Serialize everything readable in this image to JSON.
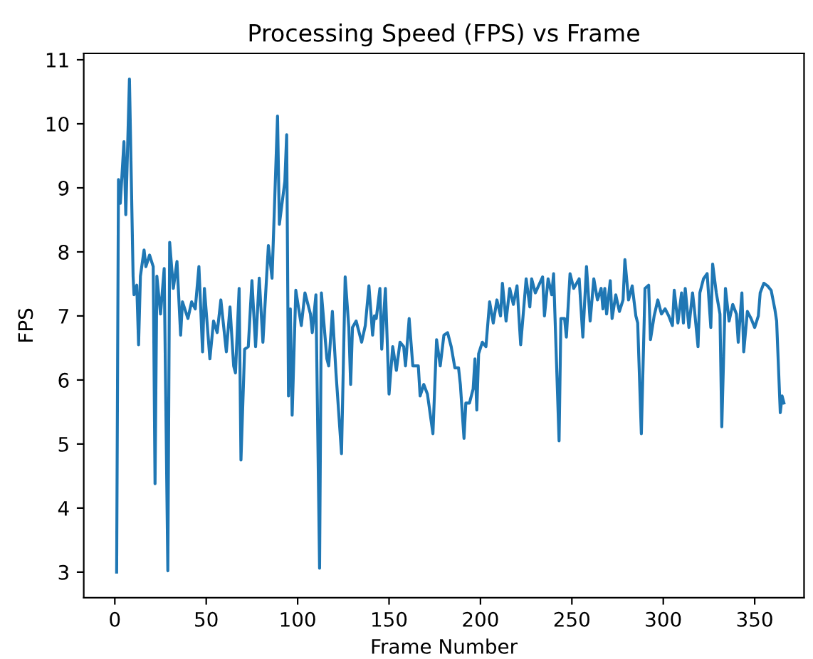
{
  "chart_data": {
    "type": "line",
    "title": "Processing Speed (FPS) vs Frame",
    "xlabel": "Frame Number",
    "ylabel": "FPS",
    "xlim": [
      -17,
      377
    ],
    "ylim": [
      2.6,
      11.1
    ],
    "xticks": [
      0,
      50,
      100,
      150,
      200,
      250,
      300,
      350
    ],
    "yticks": [
      3,
      4,
      5,
      6,
      7,
      8,
      9,
      10,
      11
    ],
    "grid": false,
    "legend": false,
    "series": [
      {
        "color": "#1f77b4",
        "x": [
          1,
          2,
          3,
          5,
          6,
          8,
          10,
          10.5,
          12,
          13,
          14,
          16,
          17,
          19,
          21,
          22,
          23,
          25,
          27,
          29,
          30,
          32,
          34,
          36,
          37,
          40,
          42,
          44,
          46,
          48,
          49,
          52,
          54,
          56,
          58,
          61,
          63,
          65,
          66,
          68,
          69,
          71,
          73,
          75,
          77,
          79,
          81,
          84,
          86,
          89,
          90,
          93,
          94,
          95,
          96,
          97,
          99,
          102,
          104,
          107,
          108,
          110,
          112,
          113,
          116,
          117,
          119,
          121,
          124,
          126,
          128,
          129,
          130,
          132,
          135,
          137,
          139,
          141,
          142,
          143,
          145,
          146,
          148,
          150,
          152,
          154,
          156,
          158,
          159,
          161,
          163,
          166,
          167,
          169,
          171,
          174,
          176,
          178,
          180,
          182,
          184,
          186,
          188,
          189,
          191,
          192,
          194,
          196,
          197,
          198,
          199,
          201,
          203,
          205,
          207,
          209,
          211,
          212,
          214,
          216,
          218,
          220,
          222,
          225,
          227,
          228,
          230,
          234,
          235,
          237,
          239,
          240,
          243,
          244,
          246,
          247,
          249,
          251,
          254,
          256,
          258,
          260,
          262,
          264,
          266,
          267,
          268,
          269,
          271,
          272,
          274,
          276,
          278,
          279,
          281,
          283,
          285,
          286,
          288,
          290,
          292,
          293,
          295,
          297,
          299,
          301,
          303,
          305,
          306,
          308,
          310,
          311,
          312,
          314,
          316,
          317,
          319,
          320,
          322,
          324,
          326,
          327,
          329,
          331,
          332,
          334,
          336,
          338,
          340,
          341,
          343,
          344,
          346,
          348,
          350,
          352,
          353,
          355,
          357,
          359,
          361,
          362,
          364,
          365,
          366
        ],
        "values": [
          3.0,
          9.13,
          8.76,
          9.72,
          8.58,
          10.7,
          7.62,
          7.33,
          7.48,
          6.55,
          7.62,
          8.03,
          7.77,
          7.95,
          7.77,
          4.38,
          7.62,
          7.03,
          7.74,
          3.02,
          8.15,
          7.43,
          7.85,
          6.7,
          7.22,
          6.96,
          7.22,
          7.11,
          7.77,
          6.44,
          7.43,
          6.33,
          6.92,
          6.74,
          7.25,
          6.44,
          7.14,
          6.22,
          6.11,
          7.43,
          4.75,
          6.48,
          6.52,
          7.55,
          6.52,
          7.59,
          6.59,
          8.1,
          7.59,
          10.12,
          8.43,
          9.1,
          9.83,
          5.75,
          7.11,
          5.45,
          7.4,
          6.85,
          7.36,
          7.03,
          6.74,
          7.33,
          3.06,
          7.36,
          6.33,
          6.22,
          7.07,
          6.1,
          4.85,
          7.61,
          6.82,
          5.93,
          6.82,
          6.92,
          6.59,
          6.85,
          7.47,
          6.7,
          7.0,
          6.96,
          7.43,
          6.48,
          7.43,
          5.78,
          6.52,
          6.15,
          6.59,
          6.52,
          6.22,
          6.96,
          6.22,
          6.22,
          5.75,
          5.93,
          5.78,
          5.16,
          6.63,
          6.22,
          6.7,
          6.74,
          6.52,
          6.19,
          6.19,
          5.93,
          5.09,
          5.64,
          5.64,
          5.86,
          6.33,
          5.53,
          6.41,
          6.59,
          6.52,
          7.22,
          6.89,
          7.25,
          7.0,
          7.51,
          6.92,
          7.43,
          7.18,
          7.47,
          6.55,
          7.58,
          7.14,
          7.58,
          7.36,
          7.61,
          7.0,
          7.58,
          7.33,
          7.66,
          5.05,
          6.96,
          6.96,
          6.67,
          7.66,
          7.43,
          7.58,
          6.67,
          7.77,
          6.92,
          7.58,
          7.25,
          7.43,
          7.11,
          7.43,
          7.03,
          7.55,
          6.96,
          7.33,
          7.07,
          7.25,
          7.88,
          7.25,
          7.47,
          7.0,
          6.89,
          5.16,
          7.43,
          7.48,
          6.63,
          7.0,
          7.25,
          7.03,
          7.11,
          7.0,
          6.85,
          7.4,
          6.89,
          7.36,
          6.89,
          7.43,
          6.82,
          7.36,
          7.11,
          6.52,
          7.36,
          7.58,
          7.66,
          6.82,
          7.81,
          7.36,
          7.03,
          5.27,
          7.43,
          6.92,
          7.18,
          7.03,
          6.59,
          7.36,
          6.44,
          7.07,
          6.96,
          6.82,
          7.0,
          7.36,
          7.51,
          7.47,
          7.4,
          7.11,
          6.92,
          5.49,
          5.75,
          5.64
        ]
      }
    ]
  }
}
